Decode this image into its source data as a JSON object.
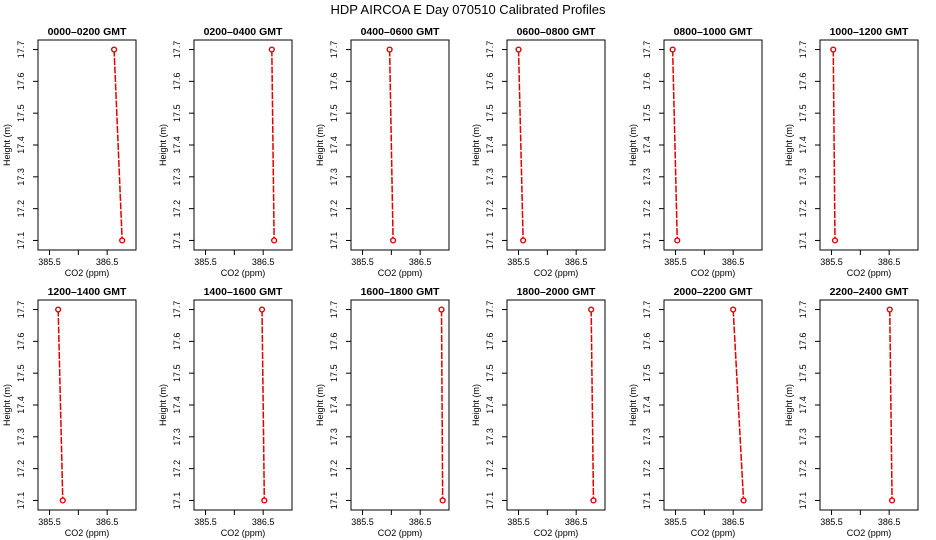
{
  "title": "HDP AIRCOA E  Day 070510  Calibrated Profiles",
  "colors": {
    "line": "#e00000",
    "marker": "#e00000",
    "frame": "#000000"
  },
  "chart_data": {
    "type": "line",
    "grid": false,
    "xlabel": "CO2 (ppm)",
    "ylabel": "Height (m)",
    "xlim": [
      385.3,
      387.0
    ],
    "ylim": [
      17.07,
      17.73
    ],
    "xticks": [
      385.5,
      386.0,
      386.5
    ],
    "xtick_labels": [
      "385.5",
      "",
      "386.5"
    ],
    "yticks": [
      17.1,
      17.2,
      17.3,
      17.4,
      17.5,
      17.6,
      17.7
    ],
    "ytick_labels": [
      "17.1",
      "17.2",
      "17.3",
      "17.4",
      "17.5",
      "17.6",
      "17.7"
    ],
    "panels": [
      {
        "title": "0000–0200 GMT",
        "x": [
          386.62,
          386.76
        ],
        "y": [
          17.7,
          17.1
        ]
      },
      {
        "title": "0200–0400 GMT",
        "x": [
          386.65,
          386.69
        ],
        "y": [
          17.7,
          17.1
        ]
      },
      {
        "title": "0400–0600 GMT",
        "x": [
          385.97,
          386.03
        ],
        "y": [
          17.7,
          17.1
        ]
      },
      {
        "title": "0600–0800 GMT",
        "x": [
          385.5,
          385.58
        ],
        "y": [
          17.7,
          17.1
        ]
      },
      {
        "title": "0800–1000 GMT",
        "x": [
          385.45,
          385.53
        ],
        "y": [
          17.7,
          17.1
        ]
      },
      {
        "title": "1000–1200 GMT",
        "x": [
          385.53,
          385.56
        ],
        "y": [
          17.7,
          17.1
        ]
      },
      {
        "title": "1200–1400 GMT",
        "x": [
          385.65,
          385.73
        ],
        "y": [
          17.7,
          17.1
        ]
      },
      {
        "title": "1400–1600 GMT",
        "x": [
          386.48,
          386.52
        ],
        "y": [
          17.7,
          17.1
        ]
      },
      {
        "title": "1600–1800 GMT",
        "x": [
          386.87,
          386.89
        ],
        "y": [
          17.7,
          17.1
        ]
      },
      {
        "title": "1800–2000 GMT",
        "x": [
          386.76,
          386.8
        ],
        "y": [
          17.7,
          17.1
        ]
      },
      {
        "title": "2000–2200 GMT",
        "x": [
          386.5,
          386.68
        ],
        "y": [
          17.7,
          17.1
        ]
      },
      {
        "title": "2200–2400 GMT",
        "x": [
          386.51,
          386.55
        ],
        "y": [
          17.7,
          17.1
        ]
      }
    ]
  }
}
